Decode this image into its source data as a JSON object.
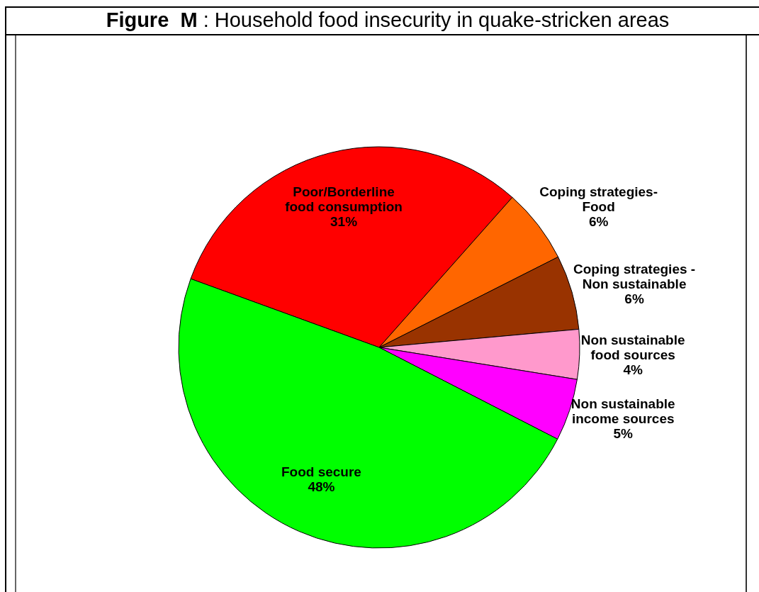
{
  "chart_data": {
    "type": "pie",
    "title": "Figure  M : Household food insecurity in quake-stricken areas",
    "categories": [
      "Poor/Borderline food consumption",
      "Coping strategies- Food",
      "Coping strategies - Non sustainable",
      "Non sustainable food sources",
      "Non sustainable income sources",
      "Food secure"
    ],
    "values": [
      31,
      6,
      6,
      4,
      5,
      48
    ],
    "colors": [
      "#ff0000",
      "#ff6600",
      "#993300",
      "#ff99cc",
      "#ff00ff",
      "#00ff00"
    ],
    "value_labels": [
      "31%",
      "6%",
      "6%",
      "4%",
      "5%",
      "48%"
    ]
  }
}
